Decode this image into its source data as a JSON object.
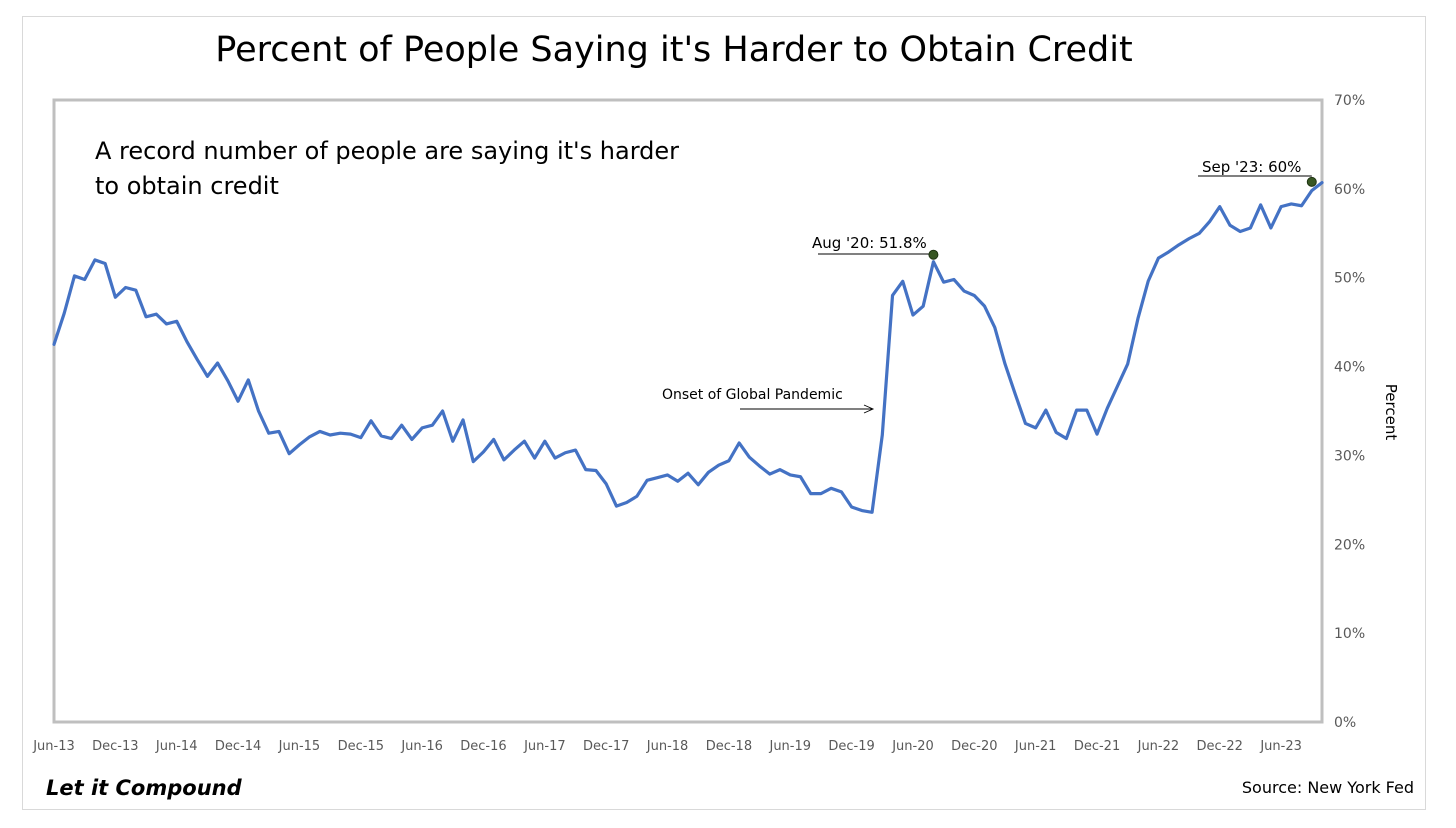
{
  "chart_data": {
    "type": "line",
    "title": "Percent of People Saying it's Harder to Obtain Credit",
    "ylabel": "Percent",
    "xlabel": "",
    "ylim": [
      0,
      70
    ],
    "yticks": [
      "0%",
      "10%",
      "20%",
      "30%",
      "40%",
      "50%",
      "60%",
      "70%"
    ],
    "x_start": "Jun-13",
    "x_end": "Sep-23",
    "xticks": [
      "Jun-13",
      "Dec-13",
      "Jun-14",
      "Dec-14",
      "Jun-15",
      "Dec-15",
      "Jun-16",
      "Dec-16",
      "Jun-17",
      "Dec-17",
      "Jun-18",
      "Dec-18",
      "Jun-19",
      "Dec-19",
      "Jun-20",
      "Dec-20",
      "Jun-21",
      "Dec-21",
      "Jun-22",
      "Dec-22",
      "Jun-23"
    ],
    "grid": false,
    "line_color": "#4472c4",
    "marker_color": "#375623",
    "series": [
      {
        "name": "",
        "values": [
          42.5,
          46.0,
          50.2,
          49.8,
          52.0,
          51.6,
          47.8,
          48.9,
          48.6,
          45.6,
          45.9,
          44.8,
          45.1,
          42.8,
          40.8,
          38.9,
          40.4,
          38.4,
          36.1,
          38.5,
          35.0,
          32.5,
          32.7,
          30.2,
          31.2,
          32.1,
          32.7,
          32.3,
          32.5,
          32.4,
          32.0,
          33.9,
          32.2,
          31.9,
          33.4,
          31.8,
          33.1,
          33.4,
          35.0,
          31.6,
          34.0,
          29.3,
          30.4,
          31.8,
          29.5,
          30.6,
          31.6,
          29.7,
          31.6,
          29.7,
          30.3,
          30.6,
          28.4,
          28.3,
          26.8,
          24.3,
          24.7,
          25.4,
          27.2,
          27.5,
          27.8,
          27.1,
          28.0,
          26.7,
          28.1,
          28.9,
          29.4,
          31.4,
          29.8,
          28.8,
          27.9,
          28.4,
          27.8,
          27.6,
          25.7,
          25.7,
          26.3,
          25.9,
          24.2,
          23.8,
          23.6,
          32.3,
          48.0,
          49.6,
          45.8,
          46.8,
          51.8,
          49.5,
          49.8,
          48.5,
          48.0,
          46.8,
          44.4,
          40.3,
          36.9,
          33.6,
          33.1,
          35.1,
          32.6,
          31.9,
          35.1,
          35.1,
          32.4,
          35.3,
          37.8,
          40.3,
          45.4,
          49.6,
          52.2,
          52.9,
          53.7,
          54.4,
          55.0,
          56.3,
          58.0,
          55.9,
          55.2,
          55.6,
          58.2,
          55.6,
          58.0,
          58.3,
          58.1,
          59.8,
          60.7
        ]
      }
    ],
    "annotations": [
      {
        "text": "A record number of people are saying it's harder",
        "text2": "to obtain credit"
      },
      {
        "text": "Onset of Global Pandemic",
        "target_x": "Mar-20"
      },
      {
        "text": "Aug '20: 51.8%",
        "x": "Aug-20",
        "y": 51.8
      },
      {
        "text": "Sep '23: 60%",
        "x": "Sep-23",
        "y": 60
      }
    ]
  },
  "footer": {
    "brand": "Let it Compound",
    "source": "Source: New York Fed"
  }
}
